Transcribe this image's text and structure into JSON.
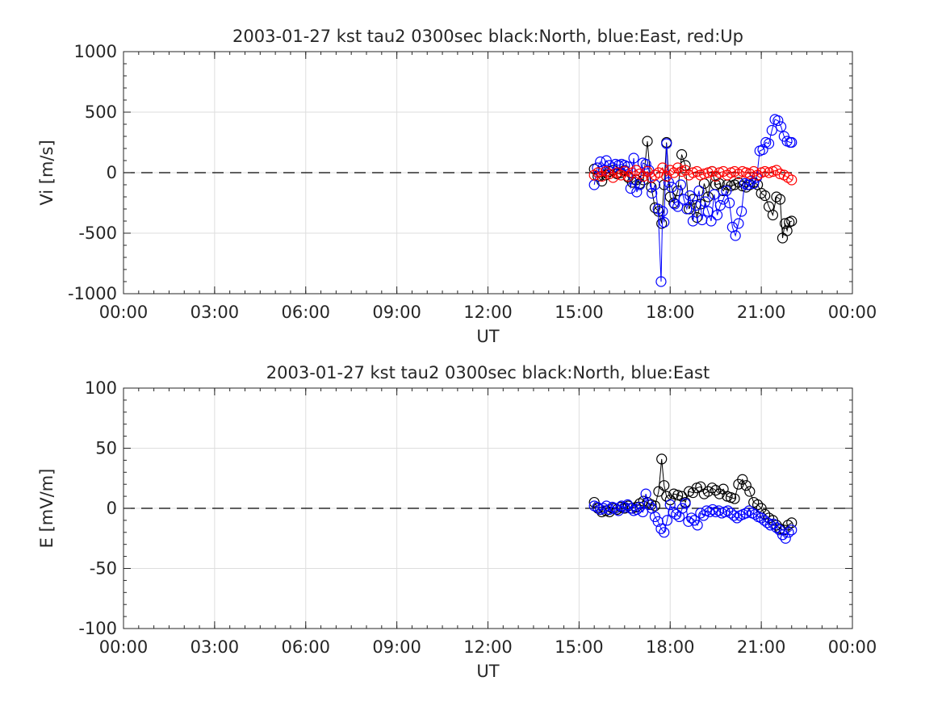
{
  "chart_data": [
    {
      "type": "line",
      "title": "2003-01-27 kst tau2 0300sec black:North, blue:East, red:Up",
      "xlabel": "UT",
      "ylabel": "Vi [m/s]",
      "xlim_hours": [
        0,
        24
      ],
      "ylim": [
        -1000,
        1000
      ],
      "xticks": [
        "00:00",
        "03:00",
        "06:00",
        "09:00",
        "12:00",
        "15:00",
        "18:00",
        "21:00",
        "00:00"
      ],
      "yticks": [
        "1000",
        "500",
        "0",
        "-500",
        "-1000"
      ],
      "yticks_values": [
        1000,
        500,
        0,
        -500,
        -1000
      ],
      "grid": true,
      "zero_line": "dashed",
      "marker": "open-circle",
      "series": [
        {
          "name": "North",
          "color": "#000000",
          "x_hours": [
            15.5,
            15.62,
            15.75,
            15.88,
            16.0,
            16.12,
            16.25,
            16.38,
            16.5,
            16.62,
            16.75,
            16.88,
            17.0,
            17.12,
            17.25,
            17.38,
            17.5,
            17.62,
            17.72,
            17.8,
            17.88,
            18.0,
            18.12,
            18.25,
            18.38,
            18.5,
            18.62,
            18.75,
            18.88,
            19.0,
            19.12,
            19.25,
            19.38,
            19.5,
            19.62,
            19.75,
            19.88,
            20.0,
            20.12,
            20.25,
            20.38,
            20.5,
            20.62,
            20.75,
            20.88,
            21.0,
            21.12,
            21.25,
            21.38,
            21.5,
            21.62,
            21.7,
            21.78,
            21.85,
            21.92,
            22.0
          ],
          "values": [
            30,
            -30,
            -70,
            -20,
            10,
            20,
            -10,
            0,
            20,
            -40,
            -80,
            -60,
            -90,
            -60,
            260,
            -120,
            -290,
            -320,
            -420,
            -100,
            250,
            -200,
            -250,
            -150,
            150,
            60,
            -300,
            -220,
            -370,
            -260,
            -90,
            -200,
            10,
            -100,
            -90,
            -150,
            -100,
            -110,
            -100,
            -80,
            -110,
            -120,
            -100,
            -80,
            -100,
            -170,
            -190,
            -280,
            -350,
            -200,
            -220,
            -540,
            -420,
            -480,
            -410,
            -400
          ]
        },
        {
          "name": "East",
          "color": "#0000ff",
          "x_hours": [
            15.5,
            15.6,
            15.7,
            15.8,
            15.9,
            16.0,
            16.1,
            16.2,
            16.3,
            16.4,
            16.5,
            16.6,
            16.7,
            16.8,
            16.9,
            17.0,
            17.1,
            17.2,
            17.3,
            17.4,
            17.5,
            17.6,
            17.7,
            17.75,
            17.8,
            17.88,
            17.95,
            18.05,
            18.15,
            18.25,
            18.35,
            18.45,
            18.55,
            18.65,
            18.75,
            18.85,
            18.95,
            19.05,
            19.15,
            19.25,
            19.35,
            19.45,
            19.55,
            19.65,
            19.75,
            19.85,
            19.95,
            20.05,
            20.15,
            20.25,
            20.35,
            20.45,
            20.55,
            20.65,
            20.75,
            20.85,
            20.95,
            21.05,
            21.15,
            21.25,
            21.35,
            21.45,
            21.55,
            21.65,
            21.75,
            21.85,
            21.95,
            22.0
          ],
          "values": [
            -100,
            40,
            90,
            20,
            100,
            60,
            40,
            70,
            60,
            70,
            60,
            50,
            -130,
            120,
            -160,
            -100,
            80,
            70,
            20,
            -170,
            -100,
            -300,
            -900,
            -320,
            -410,
            240,
            -80,
            -120,
            -260,
            -280,
            -100,
            -220,
            -300,
            -190,
            -400,
            -270,
            -150,
            -390,
            -240,
            -320,
            -400,
            -180,
            -350,
            -270,
            -220,
            -150,
            -250,
            -450,
            -520,
            -420,
            -320,
            -90,
            -100,
            -70,
            -90,
            -40,
            180,
            190,
            250,
            240,
            350,
            440,
            430,
            380,
            300,
            260,
            250,
            250
          ]
        },
        {
          "name": "Up",
          "color": "#ff0000",
          "x_hours": [
            15.5,
            15.62,
            15.75,
            15.88,
            16.0,
            16.12,
            16.25,
            16.38,
            16.5,
            16.62,
            16.75,
            16.88,
            17.0,
            17.12,
            17.25,
            17.38,
            17.5,
            17.62,
            17.75,
            17.88,
            18.0,
            18.12,
            18.25,
            18.38,
            18.5,
            18.62,
            18.75,
            18.88,
            19.0,
            19.12,
            19.25,
            19.38,
            19.5,
            19.62,
            19.75,
            19.88,
            20.0,
            20.12,
            20.25,
            20.38,
            20.5,
            20.62,
            20.75,
            20.88,
            21.0,
            21.12,
            21.25,
            21.38,
            21.5,
            21.62,
            21.75,
            21.88,
            22.0
          ],
          "values": [
            -20,
            0,
            -30,
            10,
            -10,
            -40,
            0,
            -20,
            10,
            -30,
            0,
            20,
            -10,
            -30,
            10,
            -40,
            -20,
            0,
            40,
            -30,
            20,
            0,
            40,
            10,
            20,
            -20,
            0,
            10,
            -20,
            -10,
            0,
            10,
            -30,
            0,
            10,
            -20,
            0,
            10,
            -10,
            10,
            0,
            -10,
            10,
            -20,
            0,
            10,
            0,
            10,
            20,
            -10,
            -20,
            -40,
            -60
          ]
        }
      ]
    },
    {
      "type": "line",
      "title": "2003-01-27 kst tau2 0300sec black:North, blue:East",
      "xlabel": "UT",
      "ylabel": "E [mV/m]",
      "xlim_hours": [
        0,
        24
      ],
      "ylim": [
        -100,
        100
      ],
      "xticks": [
        "00:00",
        "03:00",
        "06:00",
        "09:00",
        "12:00",
        "15:00",
        "18:00",
        "21:00",
        "00:00"
      ],
      "yticks": [
        "100",
        "50",
        "0",
        "-50",
        "-100"
      ],
      "yticks_values": [
        100,
        50,
        0,
        -50,
        -100
      ],
      "grid": true,
      "zero_line": "dashed",
      "marker": "open-circle",
      "series": [
        {
          "name": "North",
          "color": "#000000",
          "x_hours": [
            15.5,
            15.62,
            15.75,
            15.88,
            16.0,
            16.12,
            16.25,
            16.38,
            16.5,
            16.62,
            16.75,
            16.88,
            17.0,
            17.12,
            17.25,
            17.38,
            17.5,
            17.62,
            17.72,
            17.8,
            17.88,
            18.0,
            18.12,
            18.25,
            18.38,
            18.5,
            18.62,
            18.75,
            18.88,
            19.0,
            19.12,
            19.25,
            19.38,
            19.5,
            19.62,
            19.75,
            19.88,
            20.0,
            20.12,
            20.25,
            20.38,
            20.5,
            20.62,
            20.75,
            20.88,
            21.0,
            21.12,
            21.25,
            21.38,
            21.5,
            21.62,
            21.75,
            21.88,
            22.0
          ],
          "values": [
            5,
            0,
            -3,
            -2,
            -3,
            0,
            -1,
            1,
            0,
            2,
            0,
            1,
            4,
            6,
            5,
            3,
            2,
            14,
            41,
            19,
            10,
            7,
            12,
            11,
            10,
            5,
            14,
            13,
            17,
            18,
            12,
            14,
            17,
            15,
            12,
            16,
            10,
            9,
            8,
            20,
            24,
            19,
            14,
            5,
            3,
            0,
            -5,
            -8,
            -10,
            -14,
            -17,
            -18,
            -14,
            -12
          ]
        },
        {
          "name": "East",
          "color": "#0000ff",
          "x_hours": [
            15.5,
            15.6,
            15.7,
            15.8,
            15.9,
            16.0,
            16.1,
            16.2,
            16.3,
            16.4,
            16.5,
            16.6,
            16.7,
            16.8,
            16.9,
            17.0,
            17.1,
            17.2,
            17.3,
            17.4,
            17.5,
            17.6,
            17.7,
            17.8,
            17.9,
            18.0,
            18.1,
            18.2,
            18.3,
            18.4,
            18.5,
            18.6,
            18.7,
            18.8,
            18.9,
            19.0,
            19.1,
            19.2,
            19.3,
            19.4,
            19.5,
            19.6,
            19.7,
            19.8,
            19.9,
            20.0,
            20.1,
            20.2,
            20.3,
            20.4,
            20.5,
            20.6,
            20.7,
            20.8,
            20.9,
            21.0,
            21.1,
            21.2,
            21.3,
            21.4,
            21.5,
            21.6,
            21.7,
            21.8,
            21.9,
            22.0
          ],
          "values": [
            2,
            1,
            -1,
            0,
            2,
            -1,
            1,
            0,
            -2,
            2,
            1,
            3,
            0,
            -2,
            -1,
            1,
            -3,
            12,
            3,
            0,
            -7,
            -11,
            -17,
            -20,
            -10,
            3,
            -3,
            -5,
            -7,
            0,
            4,
            -11,
            -8,
            -10,
            -14,
            -4,
            -6,
            -2,
            -3,
            -1,
            -3,
            -2,
            -4,
            -3,
            -2,
            -4,
            -6,
            -8,
            -6,
            -5,
            -4,
            -2,
            -4,
            -5,
            -7,
            -8,
            -10,
            -12,
            -14,
            -13,
            -16,
            -18,
            -22,
            -25,
            -20,
            -18
          ]
        }
      ]
    }
  ]
}
